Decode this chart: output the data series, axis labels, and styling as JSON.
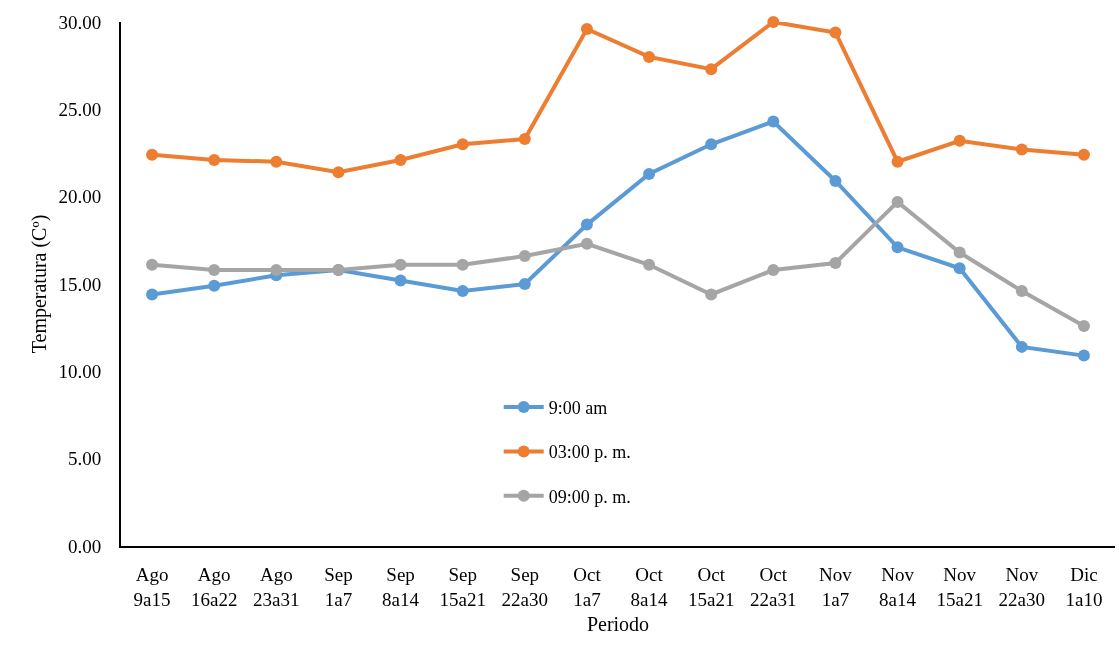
{
  "chart_data": {
    "type": "line",
    "xlabel": "Periodo",
    "ylabel": "Temperatura (Cº)",
    "categories": [
      "Ago\n9a15",
      "Ago\n16a22",
      "Ago\n23a31",
      "Sep\n1a7",
      "Sep\n8a14",
      "Sep\n15a21",
      "Sep\n22a30",
      "Oct\n1a7",
      "Oct\n8a14",
      "Oct\n15a21",
      "Oct\n22a31",
      "Nov\n1a7",
      "Nov\n8a14",
      "Nov\n15a21",
      "Nov\n22a30",
      "Dic\n1a10"
    ],
    "series": [
      {
        "name": "9:00 am",
        "color": "#5b9bd5",
        "values": [
          14.4,
          14.9,
          15.5,
          15.8,
          15.2,
          14.6,
          15.0,
          18.4,
          21.3,
          23.0,
          24.3,
          20.9,
          17.1,
          15.9,
          11.4,
          10.9
        ]
      },
      {
        "name": "03:00 p. m.",
        "color": "#ed7d31",
        "values": [
          22.4,
          22.1,
          22.0,
          21.4,
          22.1,
          23.0,
          23.3,
          29.6,
          28.0,
          27.3,
          30.0,
          29.4,
          22.0,
          23.2,
          22.7,
          22.4
        ]
      },
      {
        "name": "09:00 p. m.",
        "color": "#a5a5a5",
        "values": [
          16.1,
          15.8,
          15.8,
          15.8,
          16.1,
          16.1,
          16.6,
          17.3,
          16.1,
          14.4,
          15.8,
          16.2,
          19.7,
          16.8,
          14.6,
          12.6
        ]
      }
    ],
    "ylim": [
      0,
      30
    ],
    "yticks": [
      {
        "value": 0,
        "label": "0.00"
      },
      {
        "value": 5,
        "label": "5.00"
      },
      {
        "value": 10,
        "label": "10.00"
      },
      {
        "value": 15,
        "label": "15.00"
      },
      {
        "value": 20,
        "label": "20.00"
      },
      {
        "value": 25,
        "label": "25.00"
      },
      {
        "value": 30,
        "label": "30.00"
      }
    ],
    "grid": false,
    "legend": "bottom",
    "marker": "circle",
    "line_style": "solid"
  }
}
